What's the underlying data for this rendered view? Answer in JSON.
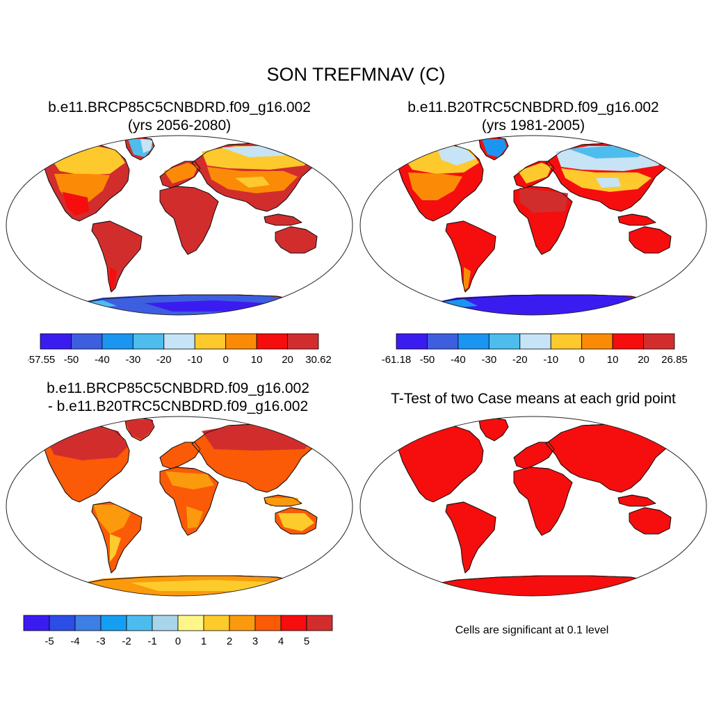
{
  "figure": {
    "title": "SON TREFMNAV (C)"
  },
  "panels": [
    {
      "title_line1": "b.e11.BRCP85C5CNBDRD.f09_g16.002",
      "title_line2": "(yrs 2056-2080)",
      "colorbar": {
        "colors": [
          "#3b1cf0",
          "#3e5ee0",
          "#1a95f2",
          "#4ebdee",
          "#c6e4f5",
          "#fdc92d",
          "#fb8b07",
          "#f60d0d",
          "#d22d2d"
        ],
        "labels": [
          "-57.55",
          "-50",
          "-40",
          "-30",
          "-20",
          "-10",
          "0",
          "10",
          "20",
          "30.62"
        ]
      }
    },
    {
      "title_line1": "b.e11.B20TRC5CNBDRD.f09_g16.002",
      "title_line2": "(yrs 1981-2005)",
      "colorbar": {
        "colors": [
          "#3b1cf0",
          "#3e5ee0",
          "#1a95f2",
          "#4ebdee",
          "#c6e4f5",
          "#fdc92d",
          "#fb8b07",
          "#f60d0d",
          "#d22d2d"
        ],
        "labels": [
          "-61.18",
          "-50",
          "-40",
          "-30",
          "-20",
          "-10",
          "0",
          "10",
          "20",
          "26.85"
        ]
      }
    },
    {
      "title_line1": "b.e11.BRCP85C5CNBDRD.f09_g16.002",
      "title_line2": "- b.e11.B20TRC5CNBDRD.f09_g16.002",
      "colorbar": {
        "colors": [
          "#3b1cf0",
          "#2c4ee6",
          "#3d7fe4",
          "#159ff2",
          "#4cbcee",
          "#a9d5eb",
          "#fff68a",
          "#fdcc2c",
          "#fb9a0d",
          "#fb5a07",
          "#f60d0d",
          "#d22d2d"
        ],
        "labels": [
          "-5",
          "-4",
          "-3",
          "-2",
          "-1",
          "0",
          "1",
          "2",
          "3",
          "4",
          "5"
        ]
      }
    },
    {
      "title_line1": "T-Test of two Case means at each grid point",
      "note": "Cells are significant at 0.1 level"
    }
  ]
}
